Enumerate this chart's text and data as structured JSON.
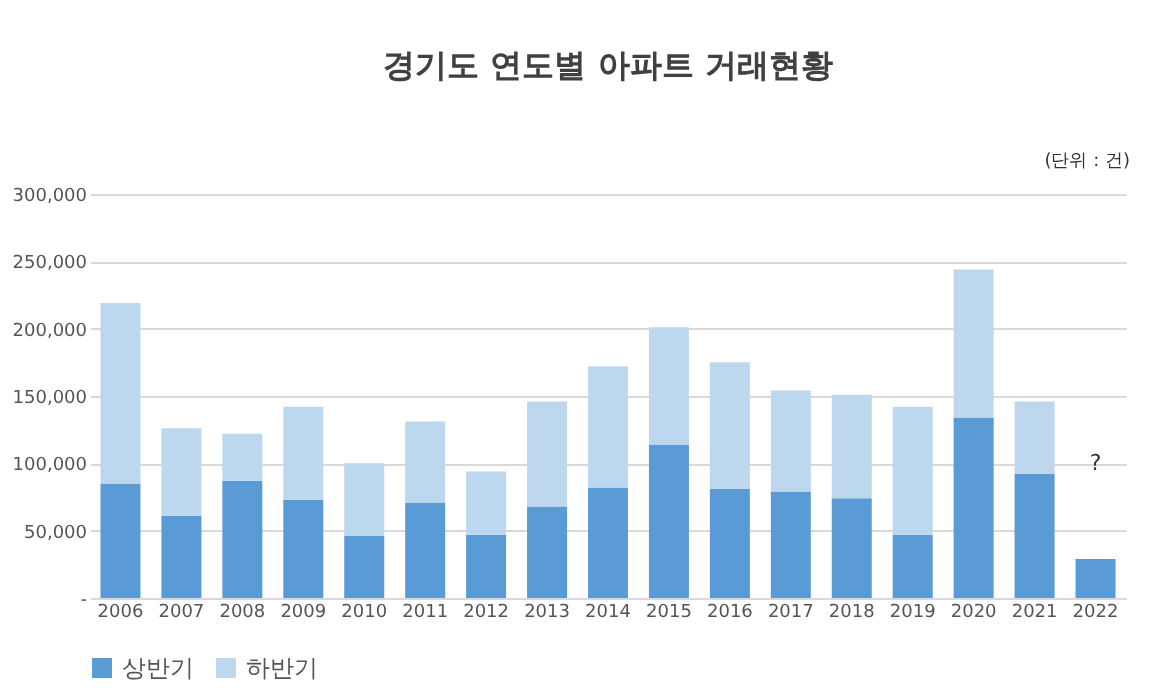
{
  "chart_data": {
    "type": "bar",
    "title": "경기도 연도별 아파트 거래현황",
    "stacked": true,
    "categories": [
      "2006",
      "2007",
      "2008",
      "2009",
      "2010",
      "2011",
      "2012",
      "2013",
      "2014",
      "2015",
      "2016",
      "2017",
      "2018",
      "2019",
      "2020",
      "2021",
      "2022"
    ],
    "series": [
      {
        "name": "상반기",
        "color": "#5b9bd5",
        "values": [
          85000,
          61000,
          87000,
          73000,
          46000,
          71000,
          47000,
          68000,
          82000,
          114000,
          81000,
          79000,
          74000,
          47000,
          134000,
          92000,
          29000
        ]
      },
      {
        "name": "하반기",
        "color": "#bdd7ee",
        "values": [
          134000,
          65000,
          35000,
          69000,
          54000,
          60000,
          47000,
          78000,
          90000,
          87000,
          94000,
          75000,
          77000,
          95000,
          110000,
          54000,
          null
        ]
      }
    ],
    "ylim": [
      0,
      300000
    ],
    "yticks": [
      {
        "value": 0,
        "label": "-"
      },
      {
        "value": 50000,
        "label": "50,000"
      },
      {
        "value": 100000,
        "label": "100,000"
      },
      {
        "value": 150000,
        "label": "150,000"
      },
      {
        "value": 200000,
        "label": "200,000"
      },
      {
        "value": 250000,
        "label": "250,000"
      },
      {
        "value": 300000,
        "label": "300,000"
      }
    ],
    "grid": "y",
    "legend": "bottom",
    "annotations": [
      "(단위 : 건)",
      "?"
    ]
  }
}
